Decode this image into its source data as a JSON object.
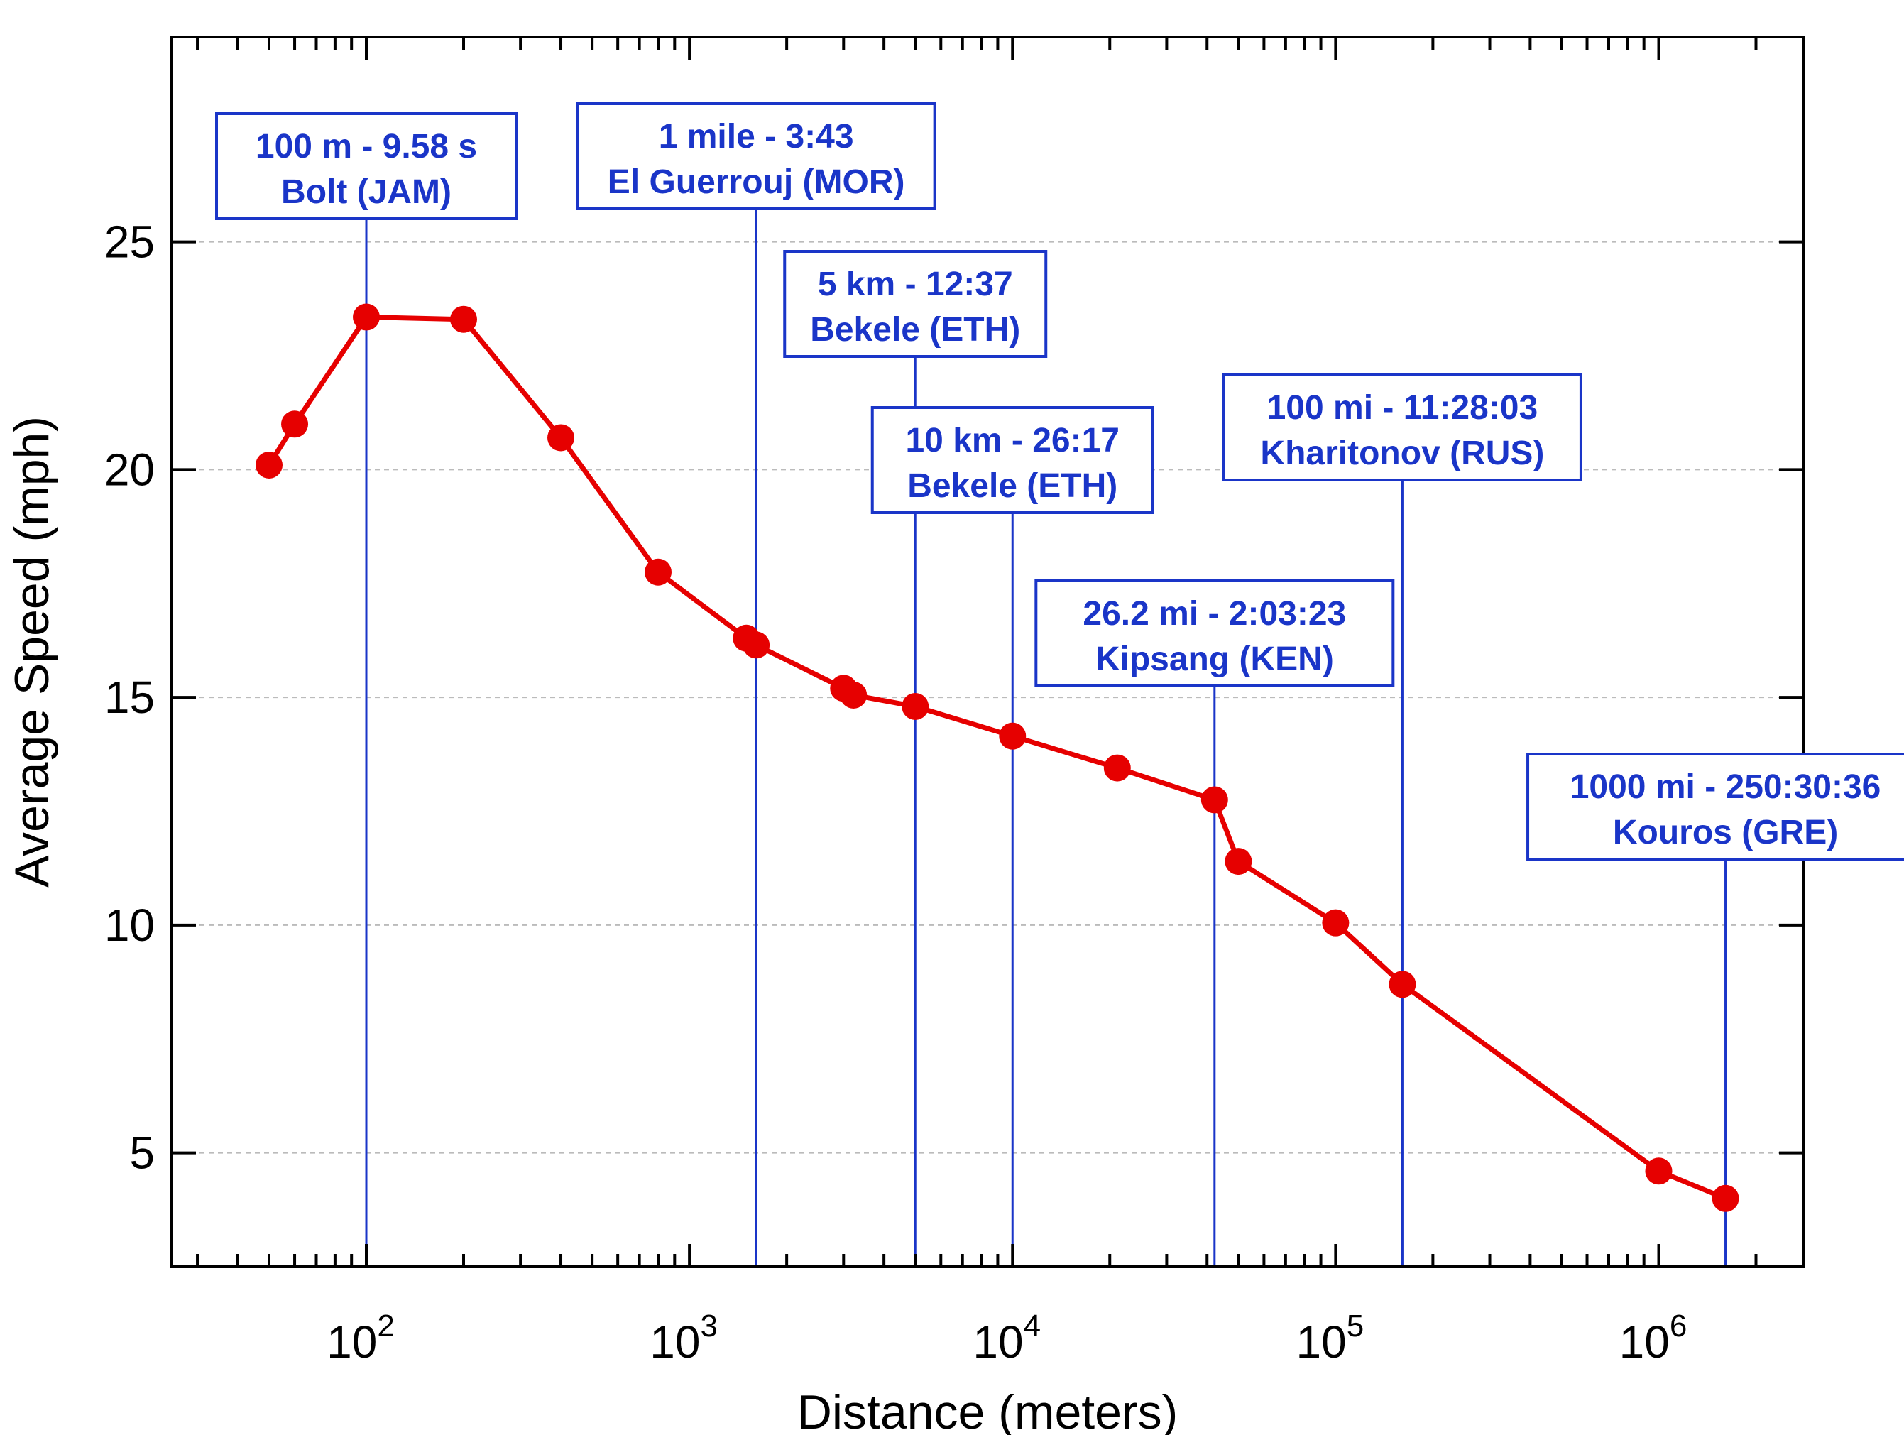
{
  "chart_data": {
    "type": "line",
    "title": "",
    "xlabel": "Distance (meters)",
    "ylabel": "Average Speed (mph)",
    "xscale": "log",
    "xlim": [
      25,
      2800000
    ],
    "ylim": [
      2.5,
      29.5
    ],
    "yticks": [
      "5",
      "10",
      "15",
      "20",
      "25"
    ],
    "xticks": [
      {
        "base": "10",
        "exp": "2"
      },
      {
        "base": "10",
        "exp": "3"
      },
      {
        "base": "10",
        "exp": "4"
      },
      {
        "base": "10",
        "exp": "5"
      },
      {
        "base": "10",
        "exp": "6"
      }
    ],
    "grid": "horizontal dashed",
    "colors": {
      "series": "#e60000",
      "annotation": "#1a35c8",
      "grid": "#bbbbbb"
    },
    "series": [
      {
        "x": [
          50,
          60,
          100,
          200,
          400,
          800,
          1500,
          1609,
          3000,
          3219,
          5000,
          10000,
          21097,
          42195,
          50000,
          100000,
          160934,
          1000000,
          1609344
        ],
        "y": [
          20.1,
          21.0,
          23.35,
          23.3,
          20.7,
          17.75,
          16.3,
          16.15,
          15.2,
          15.05,
          14.8,
          14.15,
          13.45,
          12.75,
          11.4,
          10.05,
          8.7,
          4.6,
          4.0
        ]
      }
    ],
    "annotations": [
      {
        "x": 100,
        "line1": "100 m - 9.58 s",
        "line2": "Bolt (JAM)"
      },
      {
        "x": 1609,
        "line1": "1 mile - 3:43",
        "line2": "El Guerrouj (MOR)"
      },
      {
        "x": 5000,
        "line1": "5 km - 12:37",
        "line2": "Bekele (ETH)"
      },
      {
        "x": 10000,
        "line1": "10 km - 26:17",
        "line2": "Bekele (ETH)"
      },
      {
        "x": 42195,
        "line1": "26.2 mi - 2:03:23",
        "line2": "Kipsang (KEN)"
      },
      {
        "x": 160934,
        "line1": "100 mi - 11:28:03",
        "line2": "Kharitonov (RUS)"
      },
      {
        "x": 1609344,
        "line1": "1000 mi - 250:30:36",
        "line2": "Kouros (GRE)"
      }
    ]
  }
}
